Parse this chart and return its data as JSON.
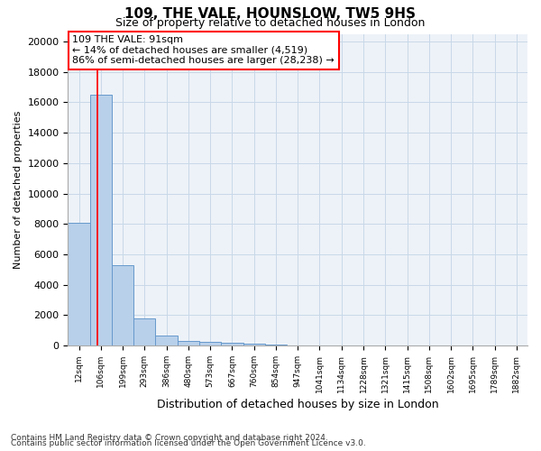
{
  "title1": "109, THE VALE, HOUNSLOW, TW5 9HS",
  "title2": "Size of property relative to detached houses in London",
  "xlabel": "Distribution of detached houses by size in London",
  "ylabel": "Number of detached properties",
  "bin_labels": [
    "12sqm",
    "106sqm",
    "199sqm",
    "293sqm",
    "386sqm",
    "480sqm",
    "573sqm",
    "667sqm",
    "760sqm",
    "854sqm",
    "947sqm",
    "1041sqm",
    "1134sqm",
    "1228sqm",
    "1321sqm",
    "1415sqm",
    "1508sqm",
    "1602sqm",
    "1695sqm",
    "1789sqm",
    "1882sqm"
  ],
  "bar_heights": [
    8050,
    16500,
    5300,
    1800,
    650,
    320,
    220,
    180,
    130,
    90,
    0,
    0,
    0,
    0,
    0,
    0,
    0,
    0,
    0,
    0,
    0
  ],
  "bar_color": "#b8d0ea",
  "bar_edge_color": "#6699cc",
  "grid_color": "#c8d8e8",
  "annotation_text": "109 THE VALE: 91sqm\n← 14% of detached houses are smaller (4,519)\n86% of semi-detached houses are larger (28,238) →",
  "red_line_bar_index": 0.85,
  "ylim": [
    0,
    20500
  ],
  "yticks": [
    0,
    2000,
    4000,
    6000,
    8000,
    10000,
    12000,
    14000,
    16000,
    18000,
    20000
  ],
  "footer1": "Contains HM Land Registry data © Crown copyright and database right 2024.",
  "footer2": "Contains public sector information licensed under the Open Government Licence v3.0.",
  "n_bars": 21
}
